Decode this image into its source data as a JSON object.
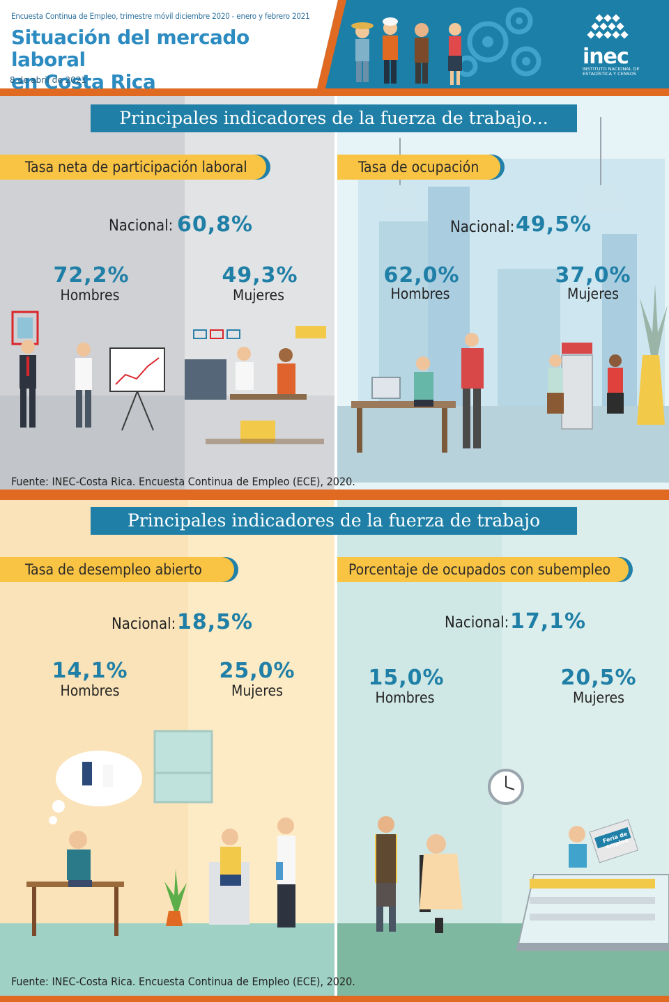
{
  "header": {
    "survey_line": "Encuesta Continua de Empleo, trimestre móvil diciembre 2020 - enero y febrero 2021",
    "title_line1": "Situación del mercado laboral",
    "title_line2": "en Costa Rica",
    "date": "8 de abril de 2021",
    "logo_text": "inec",
    "logo_sub": "INSTITUTO NACIONAL DE ESTADÍSTICA Y CENSOS"
  },
  "banners": {
    "top": "Principales indicadores de la fuerza de trabajo...",
    "bottom": "Principales indicadores de la fuerza de trabajo"
  },
  "sections": {
    "participation": {
      "title": "Tasa neta de participación laboral",
      "national_label": "Nacional:",
      "national_value": "60,8%",
      "men_value": "72,2%",
      "men_label": "Hombres",
      "women_value": "49,3%",
      "women_label": "Mujeres"
    },
    "occupation": {
      "title": "Tasa de ocupación",
      "national_label": "Nacional:",
      "national_value": "49,5%",
      "men_value": "62,0%",
      "men_label": "Hombres",
      "women_value": "37,0%",
      "women_label": "Mujeres"
    },
    "unemployment": {
      "title": "Tasa de desempleo abierto",
      "national_label": "Nacional:",
      "national_value": "18,5%",
      "men_value": "14,1%",
      "men_label": "Hombres",
      "women_value": "25,0%",
      "women_label": "Mujeres"
    },
    "underemployment": {
      "title": "Porcentaje de ocupados con subempleo",
      "national_label": "Nacional:",
      "national_value": "17,1%",
      "men_value": "15,0%",
      "men_label": "Hombres",
      "women_value": "20,5%",
      "women_label": "Mujeres",
      "sign_text": "Feria de empleo"
    }
  },
  "sources": {
    "top": "Fuente: INEC-Costa Rica. Encuesta Continua de Empleo (ECE), 2020.",
    "bottom": "Fuente: INEC-Costa Rica. Encuesta Continua de Empleo (ECE), 2020."
  },
  "colors": {
    "accent_blue": "#1f7fa6",
    "accent_orange": "#e06a22",
    "pill_yellow": "#f9c343"
  }
}
